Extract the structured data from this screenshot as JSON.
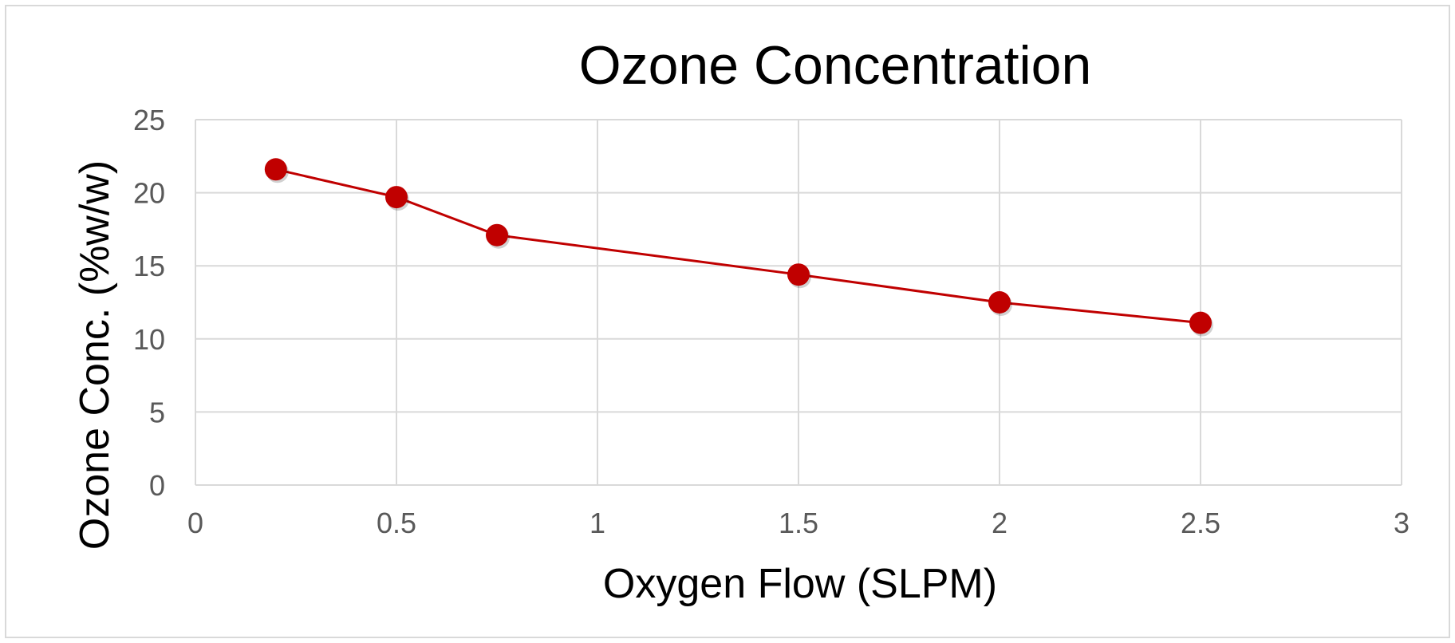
{
  "chart_data": {
    "type": "scatter",
    "title": "Ozone Concentration",
    "xlabel": "Oxygen Flow (SLPM)",
    "ylabel": "Ozone Conc. (%w/w)",
    "xlim": [
      0,
      3
    ],
    "ylim": [
      0,
      25
    ],
    "x_ticks": [
      "0",
      "0.5",
      "1",
      "1.5",
      "2",
      "2.5",
      "3"
    ],
    "y_ticks": [
      "0",
      "5",
      "10",
      "15",
      "20",
      "25"
    ],
    "grid": true,
    "legend": "none",
    "markers": true,
    "lines": "straight",
    "series": [
      {
        "color": "#c00000",
        "x": [
          0.2,
          0.5,
          0.75,
          1.5,
          2.0,
          2.5
        ],
        "y": [
          21.6,
          19.7,
          17.1,
          14.4,
          12.5,
          11.1
        ]
      }
    ]
  }
}
